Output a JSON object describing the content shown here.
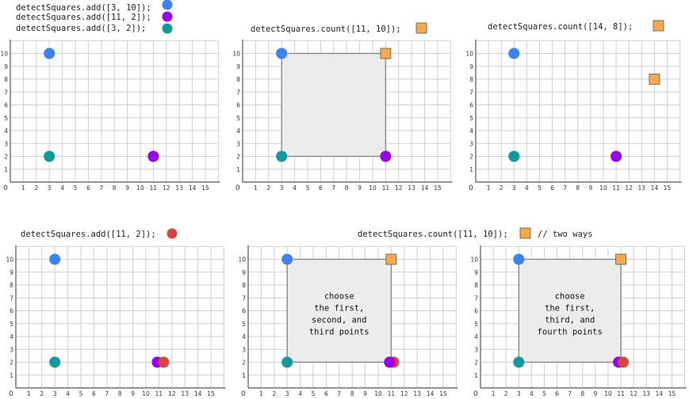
{
  "captions": {
    "add_1": "detectSquares.add([3, 10]);",
    "add_2": "detectSquares.add([11, 2]);",
    "add_3": "detectSquares.add([3, 2]);",
    "count_1": "detectSquares.count([11, 10]);",
    "count_2": "detectSquares.count([14, 8]);",
    "add_4": "detectSquares.add([11, 2]);",
    "count_3": "detectSquares.count([11, 10]);",
    "count_3_comment": "// two ways"
  },
  "axis": {
    "zero": "0",
    "x_ticks": [
      "1",
      "2",
      "3",
      "4",
      "5",
      "6",
      "7",
      "8",
      "9",
      "10",
      "11",
      "12",
      "13",
      "14",
      "15"
    ],
    "y_ticks": [
      "1",
      "2",
      "3",
      "4",
      "5",
      "6",
      "7",
      "8",
      "9",
      "10"
    ]
  },
  "colors": {
    "blue": "#3b82f6",
    "purple": "#9900ee",
    "teal": "#0e9b9b",
    "orange": "#f9a94a",
    "red": "#d9453a",
    "square_fill": "#ececec",
    "square_stroke": "#888888"
  },
  "panels": [
    {
      "id": "p1",
      "points": [
        {
          "x": 3,
          "y": 10,
          "kind": "circle",
          "color": "blue"
        },
        {
          "x": 11,
          "y": 2,
          "kind": "circle",
          "color": "purple"
        },
        {
          "x": 3,
          "y": 2,
          "kind": "circle",
          "color": "teal"
        }
      ]
    },
    {
      "id": "p2",
      "square": {
        "x1": 3,
        "y1": 2,
        "x2": 11,
        "y2": 10
      },
      "points": [
        {
          "x": 3,
          "y": 10,
          "kind": "circle",
          "color": "blue"
        },
        {
          "x": 11,
          "y": 2,
          "kind": "circle",
          "color": "purple"
        },
        {
          "x": 3,
          "y": 2,
          "kind": "circle",
          "color": "teal"
        },
        {
          "x": 11,
          "y": 10,
          "kind": "query",
          "color": "orange"
        }
      ]
    },
    {
      "id": "p3",
      "points": [
        {
          "x": 3,
          "y": 10,
          "kind": "circle",
          "color": "blue"
        },
        {
          "x": 11,
          "y": 2,
          "kind": "circle",
          "color": "purple"
        },
        {
          "x": 3,
          "y": 2,
          "kind": "circle",
          "color": "teal"
        },
        {
          "x": 14,
          "y": 8,
          "kind": "query",
          "color": "orange"
        }
      ]
    },
    {
      "id": "p4",
      "points": [
        {
          "x": 3,
          "y": 10,
          "kind": "circle",
          "color": "blue"
        },
        {
          "x": 3,
          "y": 2,
          "kind": "circle",
          "color": "teal"
        },
        {
          "x": 11,
          "y": 2,
          "kind": "circle",
          "color": "purple"
        },
        {
          "x": 11,
          "y": 2,
          "kind": "circle",
          "color": "red"
        }
      ]
    },
    {
      "id": "p5",
      "square": {
        "x1": 3,
        "y1": 2,
        "x2": 11,
        "y2": 10
      },
      "note": [
        "choose",
        "the first,",
        "second, and",
        "third points"
      ],
      "points": [
        {
          "x": 3,
          "y": 10,
          "kind": "circle",
          "color": "blue"
        },
        {
          "x": 3,
          "y": 2,
          "kind": "circle",
          "color": "teal"
        },
        {
          "x": 11,
          "y": 2,
          "kind": "circle",
          "color": "red"
        },
        {
          "x": 11,
          "y": 2,
          "kind": "circle",
          "color": "purple"
        },
        {
          "x": 11,
          "y": 10,
          "kind": "query",
          "color": "orange"
        }
      ]
    },
    {
      "id": "p6",
      "square": {
        "x1": 3,
        "y1": 2,
        "x2": 11,
        "y2": 10
      },
      "note": [
        "choose",
        "the first,",
        "third, and",
        "fourth points"
      ],
      "points": [
        {
          "x": 3,
          "y": 10,
          "kind": "circle",
          "color": "blue"
        },
        {
          "x": 3,
          "y": 2,
          "kind": "circle",
          "color": "teal"
        },
        {
          "x": 11,
          "y": 2,
          "kind": "circle",
          "color": "purple"
        },
        {
          "x": 11,
          "y": 2,
          "kind": "circle",
          "color": "red"
        },
        {
          "x": 11,
          "y": 10,
          "kind": "query",
          "color": "orange"
        }
      ]
    }
  ]
}
